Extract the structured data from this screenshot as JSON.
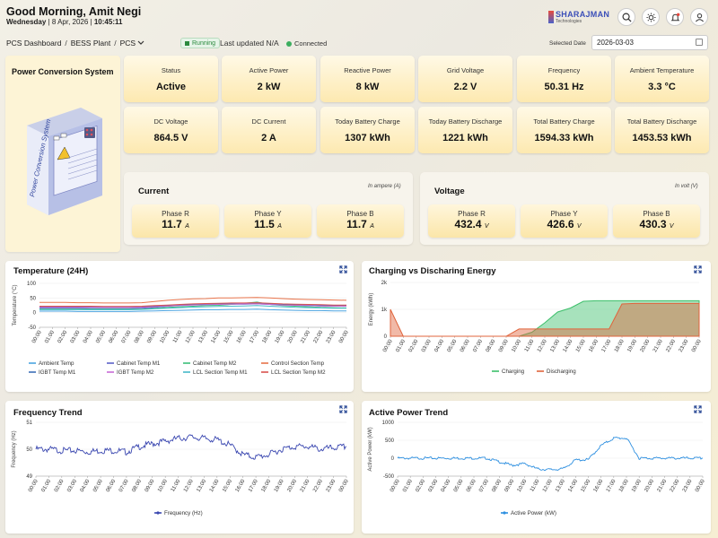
{
  "header": {
    "greeting": "Good Morning, Amit Negi",
    "day": "Wednesday",
    "date": "8 Apr, 2026",
    "time": "10:45:11",
    "logo_name": "SHARAJMAN",
    "logo_sub": "Technologies"
  },
  "toolbar": {
    "crumb_root": "PCS Dashboard",
    "crumb_plant": "BESS Plant",
    "crumb_device": "PCS",
    "status_badge": "Running",
    "last_updated": "Last updated N/A",
    "connection": "Connected",
    "selected_date_label": "Selected Date",
    "selected_date": "2026-03-03"
  },
  "pcs": {
    "title": "Power Conversion System",
    "device_label": "Power Conversion System"
  },
  "metrics": [
    {
      "label": "Status",
      "value": "Active"
    },
    {
      "label": "Active Power",
      "value": "2 kW"
    },
    {
      "label": "Reactive Power",
      "value": "8 kW"
    },
    {
      "label": "Grid Voltage",
      "value": "2.2 V"
    },
    {
      "label": "Frequency",
      "value": "50.31 Hz"
    },
    {
      "label": "Ambient Temperature",
      "value": "3.3 °C"
    },
    {
      "label": "DC Voltage",
      "value": "864.5 V"
    },
    {
      "label": "DC Current",
      "value": "2 A"
    },
    {
      "label": "Today Battery Charge",
      "value": "1307 kWh"
    },
    {
      "label": "Today Battery Discharge",
      "value": "1221 kWh"
    },
    {
      "label": "Total Battery Charge",
      "value": "1594.33 kWh"
    },
    {
      "label": "Total Battery Discharge",
      "value": "1453.53 kWh"
    }
  ],
  "current": {
    "title": "Current",
    "unit_note": "In ampere (A)",
    "unit": "A",
    "phases": [
      {
        "label": "Phase R",
        "value": "11.7"
      },
      {
        "label": "Phase Y",
        "value": "11.5"
      },
      {
        "label": "Phase B",
        "value": "11.7"
      }
    ]
  },
  "voltage": {
    "title": "Voltage",
    "unit_note": "In volt (V)",
    "unit": "V",
    "phases": [
      {
        "label": "Phase R",
        "value": "432.4"
      },
      {
        "label": "Phase Y",
        "value": "426.6"
      },
      {
        "label": "Phase B",
        "value": "430.3"
      }
    ]
  },
  "colors": {
    "ambient": "#4aa3e0",
    "cabinet_m1": "#5b62c8",
    "cabinet_m2": "#3cc07a",
    "control": "#e8734a",
    "igbt_m1": "#3d6fb8",
    "igbt_m2": "#c86ad6",
    "lcl_m1": "#46b9c9",
    "lcl_m2": "#d9534f",
    "charging": "#3cbf6a",
    "discharging": "#e0643c",
    "frequency": "#3a47b0",
    "active_power": "#2d8fe0"
  },
  "chart_data": [
    {
      "type": "line",
      "title": "Temperature (24H)",
      "ylabel": "Temperature (°C)",
      "ylim": [
        -50,
        100
      ],
      "yticks": [
        "100",
        "50",
        "0",
        "-50"
      ],
      "x": [
        "00:00",
        "01:00",
        "02:00",
        "03:00",
        "04:00",
        "05:00",
        "06:00",
        "07:00",
        "08:00",
        "09:00",
        "10:00",
        "11:00",
        "12:00",
        "13:00",
        "14:00",
        "15:00",
        "16:00",
        "17:00",
        "18:00",
        "19:00",
        "20:00",
        "21:00",
        "22:00",
        "23:00",
        "00:00"
      ],
      "series": [
        {
          "name": "Ambient Temp",
          "values": [
            5,
            5,
            5,
            4,
            4,
            4,
            4,
            4,
            5,
            6,
            7,
            8,
            9,
            10,
            10,
            11,
            11,
            12,
            10,
            9,
            8,
            7,
            7,
            6,
            6
          ]
        },
        {
          "name": "Cabinet Temp M1",
          "values": [
            15,
            15,
            15,
            15,
            14,
            14,
            14,
            14,
            15,
            18,
            22,
            25,
            27,
            28,
            28,
            29,
            29,
            30,
            28,
            26,
            25,
            24,
            23,
            22,
            22
          ]
        },
        {
          "name": "Cabinet Temp M2",
          "values": [
            12,
            12,
            12,
            12,
            12,
            12,
            12,
            12,
            12,
            15,
            18,
            20,
            22,
            24,
            25,
            28,
            32,
            36,
            28,
            24,
            22,
            20,
            18,
            17,
            16
          ]
        },
        {
          "name": "Control Section Temp",
          "values": [
            35,
            35,
            35,
            34,
            34,
            33,
            33,
            33,
            34,
            38,
            42,
            45,
            47,
            48,
            50,
            50,
            51,
            52,
            50,
            48,
            46,
            45,
            44,
            43,
            42
          ]
        },
        {
          "name": "IGBT Temp M1",
          "values": [
            20,
            20,
            20,
            20,
            20,
            20,
            20,
            20,
            20,
            22,
            24,
            26,
            28,
            30,
            30,
            31,
            32,
            33,
            30,
            28,
            27,
            26,
            25,
            25,
            25
          ]
        },
        {
          "name": "IGBT Temp M2",
          "values": [
            18,
            18,
            18,
            18,
            18,
            18,
            18,
            18,
            18,
            20,
            22,
            24,
            26,
            27,
            28,
            29,
            30,
            30,
            28,
            26,
            25,
            24,
            23,
            22,
            22
          ]
        },
        {
          "name": "LCL Section Temp M1",
          "values": [
            10,
            10,
            10,
            10,
            10,
            10,
            10,
            10,
            11,
            13,
            15,
            17,
            19,
            20,
            21,
            22,
            23,
            24,
            22,
            20,
            18,
            17,
            16,
            15,
            15
          ]
        },
        {
          "name": "LCL Section Temp M2",
          "values": [
            22,
            22,
            22,
            22,
            22,
            21,
            21,
            21,
            22,
            24,
            26,
            28,
            30,
            31,
            32,
            33,
            33,
            34,
            32,
            30,
            29,
            28,
            27,
            26,
            26
          ]
        }
      ]
    },
    {
      "type": "area",
      "title": "Charging vs Discharing Energy",
      "ylabel": "Energy (kWh)",
      "ylim": [
        0,
        2000
      ],
      "yticks": [
        "2k",
        "1k",
        "0"
      ],
      "x": [
        "00:00",
        "01:00",
        "02:00",
        "03:00",
        "04:00",
        "05:00",
        "06:00",
        "07:00",
        "08:00",
        "09:00",
        "10:00",
        "11:00",
        "12:00",
        "13:00",
        "14:00",
        "15:00",
        "16:00",
        "17:00",
        "18:00",
        "19:00",
        "20:00",
        "21:00",
        "22:00",
        "23:00",
        "00:00"
      ],
      "series": [
        {
          "name": "Charging",
          "values": [
            0,
            0,
            0,
            0,
            0,
            0,
            0,
            0,
            0,
            0,
            0,
            150,
            500,
            900,
            1050,
            1300,
            1320,
            1320,
            1320,
            1320,
            1320,
            1320,
            1320,
            1320,
            1320
          ]
        },
        {
          "name": "Discharging",
          "values": [
            1000,
            0,
            0,
            0,
            0,
            0,
            0,
            0,
            0,
            0,
            270,
            270,
            270,
            270,
            270,
            270,
            270,
            270,
            1200,
            1220,
            1220,
            1220,
            1220,
            1220,
            1220
          ]
        }
      ]
    },
    {
      "type": "line",
      "title": "Frequency Trend",
      "ylabel": "Frequency (Hz)",
      "ylim": [
        49,
        51
      ],
      "yticks": [
        "51",
        "50",
        "49"
      ],
      "x": [
        "00:00",
        "01:00",
        "02:00",
        "03:00",
        "04:00",
        "05:00",
        "06:00",
        "07:00",
        "08:00",
        "09:00",
        "10:00",
        "11:00",
        "12:00",
        "13:00",
        "14:00",
        "15:00",
        "16:00",
        "17:00",
        "18:00",
        "19:00",
        "20:00",
        "21:00",
        "22:00",
        "23:00",
        "00:00"
      ],
      "series": [
        {
          "name": "Frequency (Hz)",
          "values": [
            50.0,
            50.0,
            49.95,
            49.95,
            49.9,
            49.95,
            49.95,
            49.9,
            50.1,
            50.2,
            50.3,
            50.4,
            50.45,
            50.4,
            50.35,
            50.15,
            49.8,
            49.7,
            49.8,
            50.0,
            50.1,
            50.1,
            50.0,
            50.05,
            50.1
          ]
        }
      ]
    },
    {
      "type": "line",
      "title": "Active Power Trend",
      "ylabel": "Active Power (kW)",
      "ylim": [
        -500,
        1000
      ],
      "yticks": [
        "1000",
        "500",
        "0",
        "-500"
      ],
      "x": [
        "00:00",
        "01:00",
        "02:00",
        "03:00",
        "04:00",
        "05:00",
        "06:00",
        "07:00",
        "08:00",
        "09:00",
        "10:00",
        "11:00",
        "12:00",
        "13:00",
        "14:00",
        "15:00",
        "16:00",
        "17:00",
        "18:00",
        "19:00",
        "20:00",
        "21:00",
        "22:00",
        "23:00",
        "00:00"
      ],
      "series": [
        {
          "name": "Active Power (kW)",
          "values": [
            0,
            0,
            0,
            0,
            0,
            0,
            0,
            0,
            -100,
            -200,
            -150,
            -300,
            -320,
            -300,
            -50,
            -40,
            350,
            560,
            560,
            0,
            0,
            0,
            0,
            0,
            0
          ]
        }
      ]
    }
  ]
}
